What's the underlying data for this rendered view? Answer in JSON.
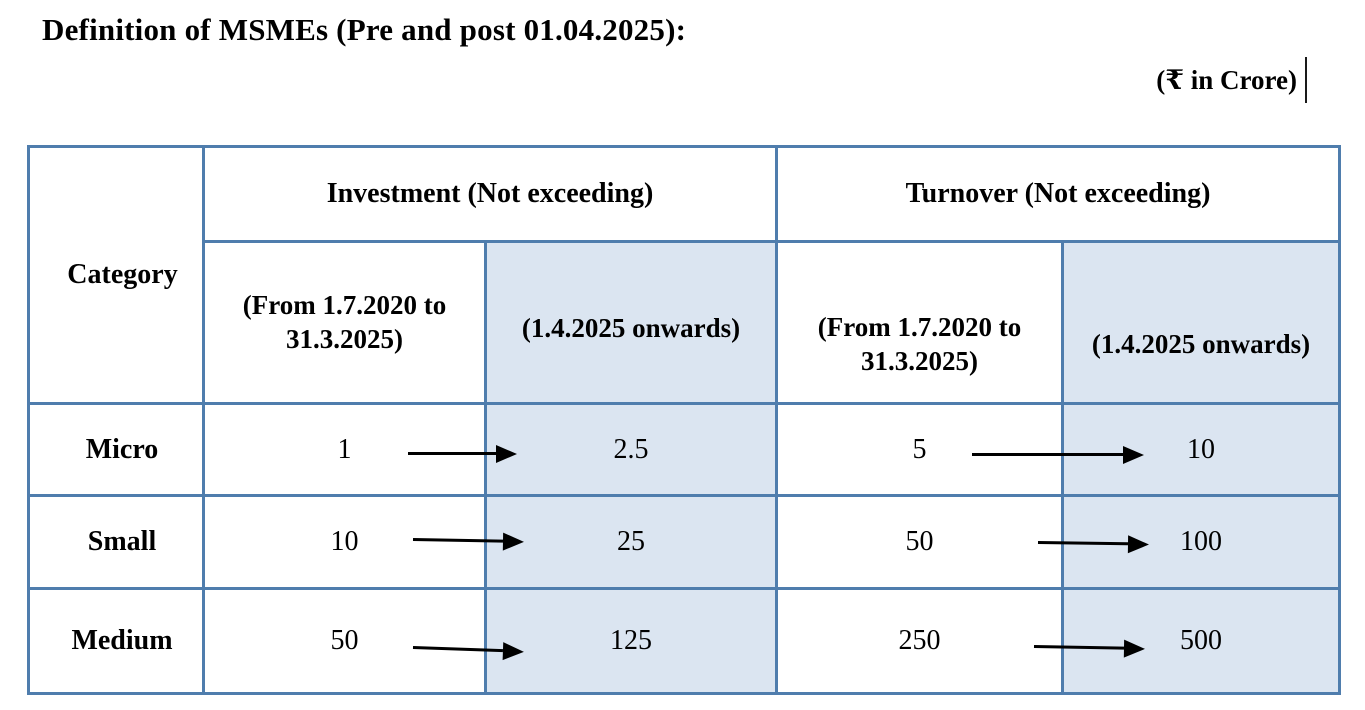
{
  "title": "Definition of MSMEs (Pre and post 01.04.2025):",
  "unit_note": "(₹ in Crore)",
  "colors": {
    "table_border": "#4f7dad",
    "post_column_fill": "#dbe5f1",
    "text": "#000000"
  },
  "table": {
    "category_header": "Category",
    "groups": [
      {
        "label": "Investment (Not exceeding)"
      },
      {
        "label": "Turnover (Not exceeding)"
      }
    ],
    "period_pre": "(From 1.7.2020 to 31.3.2025)",
    "period_post": "(1.4.2025 onwards)",
    "rows": [
      {
        "category": "Micro",
        "investment_pre": "1",
        "investment_post": "2.5",
        "turnover_pre": "5",
        "turnover_post": "10"
      },
      {
        "category": "Small",
        "investment_pre": "10",
        "investment_post": "25",
        "turnover_pre": "50",
        "turnover_post": "100"
      },
      {
        "category": "Medium",
        "investment_pre": "50",
        "investment_post": "125",
        "turnover_pre": "250",
        "turnover_post": "500"
      }
    ]
  }
}
